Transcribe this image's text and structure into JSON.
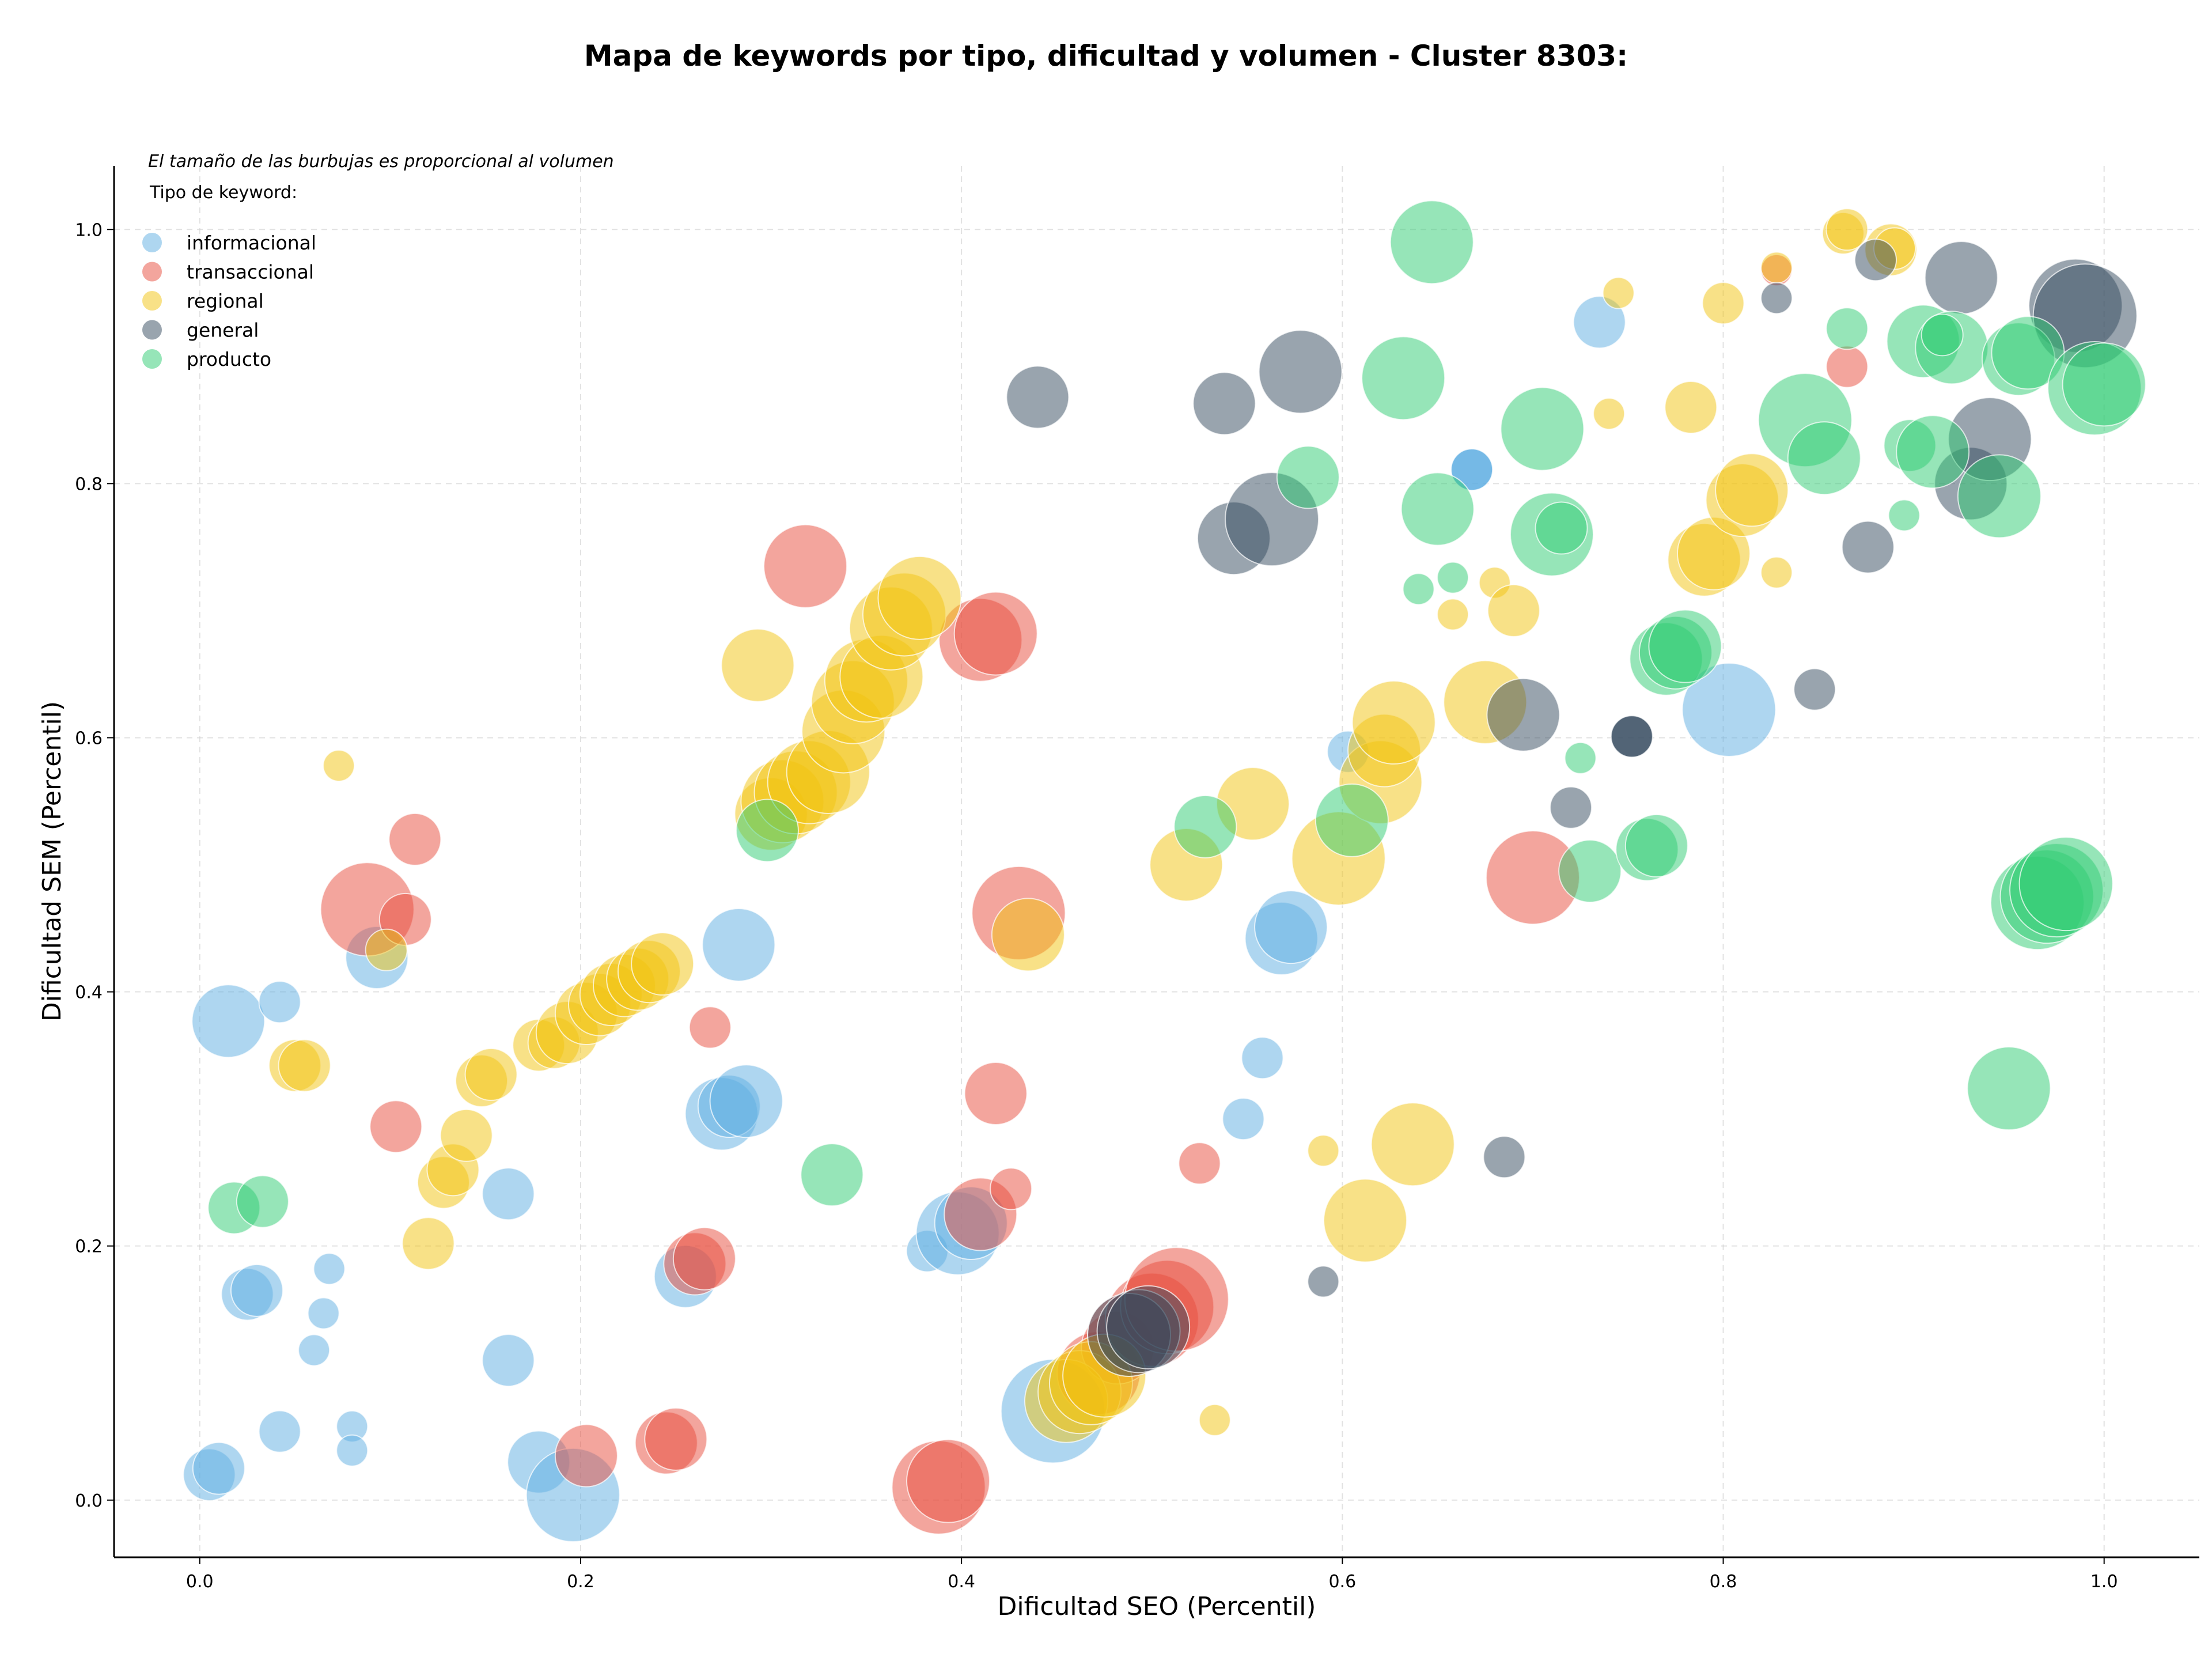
{
  "chart_data": {
    "type": "scatter",
    "title": "Mapa de keywords por tipo, dificultad y volumen - Cluster 8303:",
    "xlabel": "Dificultad SEO (Percentil)",
    "ylabel": "Dificultad SEM (Percentil)",
    "xlim": [
      -0.045,
      1.05
    ],
    "ylim": [
      -0.045,
      1.05
    ],
    "x_ticks": [
      "0.0",
      "0.2",
      "0.4",
      "0.6",
      "0.8",
      "1.0"
    ],
    "y_ticks": [
      "0.0",
      "0.2",
      "0.4",
      "0.6",
      "0.8",
      "1.0"
    ],
    "grid": true,
    "note": "El tamaño de las burbujas es proporcional al volumen",
    "legend_title": "Tipo de keyword:",
    "legend_position": "top-left",
    "series": [
      {
        "name": "informacional",
        "color": "#5DADE2",
        "points": [
          {
            "x": 0.005,
            "y": 0.02,
            "s": 3
          },
          {
            "x": 0.01,
            "y": 0.025,
            "s": 3
          },
          {
            "x": 0.015,
            "y": 0.377,
            "s": 5
          },
          {
            "x": 0.042,
            "y": 0.392,
            "s": 2
          },
          {
            "x": 0.025,
            "y": 0.162,
            "s": 3
          },
          {
            "x": 0.03,
            "y": 0.165,
            "s": 3
          },
          {
            "x": 0.042,
            "y": 0.054,
            "s": 2
          },
          {
            "x": 0.06,
            "y": 0.118,
            "s": 1
          },
          {
            "x": 0.065,
            "y": 0.147,
            "s": 1
          },
          {
            "x": 0.068,
            "y": 0.182,
            "s": 1
          },
          {
            "x": 0.08,
            "y": 0.058,
            "s": 1
          },
          {
            "x": 0.08,
            "y": 0.039,
            "s": 1
          },
          {
            "x": 0.093,
            "y": 0.427,
            "s": 4
          },
          {
            "x": 0.162,
            "y": 0.241,
            "s": 3
          },
          {
            "x": 0.162,
            "y": 0.11,
            "s": 3
          },
          {
            "x": 0.178,
            "y": 0.03,
            "s": 4
          },
          {
            "x": 0.196,
            "y": 0.004,
            "s": 7
          },
          {
            "x": 0.255,
            "y": 0.176,
            "s": 4
          },
          {
            "x": 0.274,
            "y": 0.304,
            "s": 5
          },
          {
            "x": 0.278,
            "y": 0.31,
            "s": 4
          },
          {
            "x": 0.287,
            "y": 0.314,
            "s": 5
          },
          {
            "x": 0.283,
            "y": 0.437,
            "s": 5
          },
          {
            "x": 0.382,
            "y": 0.196,
            "s": 2
          },
          {
            "x": 0.398,
            "y": 0.21,
            "s": 6
          },
          {
            "x": 0.405,
            "y": 0.218,
            "s": 5
          },
          {
            "x": 0.448,
            "y": 0.07,
            "s": 8
          },
          {
            "x": 0.548,
            "y": 0.3,
            "s": 2
          },
          {
            "x": 0.558,
            "y": 0.348,
            "s": 2
          },
          {
            "x": 0.568,
            "y": 0.442,
            "s": 5
          },
          {
            "x": 0.573,
            "y": 0.451,
            "s": 5
          },
          {
            "x": 0.603,
            "y": 0.589,
            "s": 2
          },
          {
            "x": 0.668,
            "y": 0.811,
            "s": 2,
            "o": 0.85
          },
          {
            "x": 0.735,
            "y": 0.927,
            "s": 3
          },
          {
            "x": 0.803,
            "y": 0.622,
            "s": 7
          }
        ]
      },
      {
        "name": "transaccional",
        "color": "#E74C3C",
        "points": [
          {
            "x": 0.088,
            "y": 0.465,
            "s": 7
          },
          {
            "x": 0.108,
            "y": 0.457,
            "s": 3
          },
          {
            "x": 0.113,
            "y": 0.52,
            "s": 3
          },
          {
            "x": 0.103,
            "y": 0.294,
            "s": 3
          },
          {
            "x": 0.203,
            "y": 0.035,
            "s": 4
          },
          {
            "x": 0.245,
            "y": 0.045,
            "s": 4
          },
          {
            "x": 0.25,
            "y": 0.048,
            "s": 4
          },
          {
            "x": 0.26,
            "y": 0.186,
            "s": 4
          },
          {
            "x": 0.265,
            "y": 0.19,
            "s": 4
          },
          {
            "x": 0.268,
            "y": 0.372,
            "s": 2
          },
          {
            "x": 0.318,
            "y": 0.735,
            "s": 6
          },
          {
            "x": 0.388,
            "y": 0.01,
            "s": 7
          },
          {
            "x": 0.393,
            "y": 0.015,
            "s": 6
          },
          {
            "x": 0.41,
            "y": 0.225,
            "s": 5
          },
          {
            "x": 0.41,
            "y": 0.677,
            "s": 6
          },
          {
            "x": 0.418,
            "y": 0.682,
            "s": 6
          },
          {
            "x": 0.418,
            "y": 0.32,
            "s": 4
          },
          {
            "x": 0.426,
            "y": 0.245,
            "s": 2
          },
          {
            "x": 0.43,
            "y": 0.462,
            "s": 7
          },
          {
            "x": 0.472,
            "y": 0.1,
            "s": 6
          },
          {
            "x": 0.482,
            "y": 0.12,
            "s": 5
          },
          {
            "x": 0.488,
            "y": 0.13,
            "s": 6
          },
          {
            "x": 0.5,
            "y": 0.142,
            "s": 7
          },
          {
            "x": 0.508,
            "y": 0.152,
            "s": 7
          },
          {
            "x": 0.513,
            "y": 0.158,
            "s": 8
          },
          {
            "x": 0.525,
            "y": 0.265,
            "s": 2
          },
          {
            "x": 0.7,
            "y": 0.49,
            "s": 7
          },
          {
            "x": 0.865,
            "y": 0.892,
            "s": 2
          },
          {
            "x": 0.828,
            "y": 0.968,
            "s": 1
          }
        ]
      },
      {
        "name": "regional",
        "color": "#F1C40F",
        "points": [
          {
            "x": 0.073,
            "y": 0.578,
            "s": 1
          },
          {
            "x": 0.05,
            "y": 0.342,
            "s": 3
          },
          {
            "x": 0.055,
            "y": 0.342,
            "s": 3
          },
          {
            "x": 0.098,
            "y": 0.433,
            "s": 2
          },
          {
            "x": 0.12,
            "y": 0.202,
            "s": 3
          },
          {
            "x": 0.128,
            "y": 0.25,
            "s": 3
          },
          {
            "x": 0.133,
            "y": 0.26,
            "s": 3
          },
          {
            "x": 0.14,
            "y": 0.287,
            "s": 3
          },
          {
            "x": 0.148,
            "y": 0.33,
            "s": 3
          },
          {
            "x": 0.153,
            "y": 0.335,
            "s": 3
          },
          {
            "x": 0.178,
            "y": 0.358,
            "s": 3
          },
          {
            "x": 0.186,
            "y": 0.36,
            "s": 3
          },
          {
            "x": 0.193,
            "y": 0.368,
            "s": 4
          },
          {
            "x": 0.203,
            "y": 0.383,
            "s": 4
          },
          {
            "x": 0.21,
            "y": 0.39,
            "s": 4
          },
          {
            "x": 0.216,
            "y": 0.398,
            "s": 4
          },
          {
            "x": 0.223,
            "y": 0.405,
            "s": 4
          },
          {
            "x": 0.23,
            "y": 0.41,
            "s": 4
          },
          {
            "x": 0.236,
            "y": 0.416,
            "s": 4
          },
          {
            "x": 0.243,
            "y": 0.422,
            "s": 4
          },
          {
            "x": 0.293,
            "y": 0.657,
            "s": 5
          },
          {
            "x": 0.3,
            "y": 0.54,
            "s": 5
          },
          {
            "x": 0.306,
            "y": 0.55,
            "s": 6
          },
          {
            "x": 0.313,
            "y": 0.557,
            "s": 6
          },
          {
            "x": 0.32,
            "y": 0.565,
            "s": 6
          },
          {
            "x": 0.33,
            "y": 0.573,
            "s": 6
          },
          {
            "x": 0.338,
            "y": 0.605,
            "s": 6
          },
          {
            "x": 0.343,
            "y": 0.628,
            "s": 6
          },
          {
            "x": 0.35,
            "y": 0.645,
            "s": 6
          },
          {
            "x": 0.358,
            "y": 0.648,
            "s": 6
          },
          {
            "x": 0.363,
            "y": 0.686,
            "s": 6
          },
          {
            "x": 0.37,
            "y": 0.697,
            "s": 6
          },
          {
            "x": 0.378,
            "y": 0.71,
            "s": 6
          },
          {
            "x": 0.435,
            "y": 0.445,
            "s": 5
          },
          {
            "x": 0.455,
            "y": 0.078,
            "s": 6
          },
          {
            "x": 0.462,
            "y": 0.085,
            "s": 6
          },
          {
            "x": 0.468,
            "y": 0.092,
            "s": 6
          },
          {
            "x": 0.475,
            "y": 0.098,
            "s": 6
          },
          {
            "x": 0.518,
            "y": 0.5,
            "s": 5
          },
          {
            "x": 0.533,
            "y": 0.063,
            "s": 1
          },
          {
            "x": 0.553,
            "y": 0.548,
            "s": 5
          },
          {
            "x": 0.59,
            "y": 0.275,
            "s": 1
          },
          {
            "x": 0.598,
            "y": 0.505,
            "s": 7
          },
          {
            "x": 0.612,
            "y": 0.22,
            "s": 6
          },
          {
            "x": 0.62,
            "y": 0.565,
            "s": 6
          },
          {
            "x": 0.622,
            "y": 0.59,
            "s": 5
          },
          {
            "x": 0.627,
            "y": 0.612,
            "s": 6
          },
          {
            "x": 0.637,
            "y": 0.28,
            "s": 6
          },
          {
            "x": 0.658,
            "y": 0.697,
            "s": 1
          },
          {
            "x": 0.675,
            "y": 0.628,
            "s": 6
          },
          {
            "x": 0.68,
            "y": 0.722,
            "s": 1
          },
          {
            "x": 0.69,
            "y": 0.7,
            "s": 3
          },
          {
            "x": 0.74,
            "y": 0.855,
            "s": 1
          },
          {
            "x": 0.745,
            "y": 0.95,
            "s": 1
          },
          {
            "x": 0.783,
            "y": 0.86,
            "s": 3
          },
          {
            "x": 0.79,
            "y": 0.74,
            "s": 5
          },
          {
            "x": 0.795,
            "y": 0.745,
            "s": 5
          },
          {
            "x": 0.8,
            "y": 0.942,
            "s": 2
          },
          {
            "x": 0.81,
            "y": 0.787,
            "s": 5
          },
          {
            "x": 0.815,
            "y": 0.795,
            "s": 5
          },
          {
            "x": 0.828,
            "y": 0.73,
            "s": 1
          },
          {
            "x": 0.828,
            "y": 0.97,
            "s": 1
          },
          {
            "x": 0.863,
            "y": 0.997,
            "s": 2
          },
          {
            "x": 0.865,
            "y": 1.0,
            "s": 2
          },
          {
            "x": 0.888,
            "y": 0.984,
            "s": 3
          },
          {
            "x": 0.89,
            "y": 0.985,
            "s": 2
          }
        ]
      },
      {
        "name": "general",
        "color": "#34495E",
        "points": [
          {
            "x": 0.44,
            "y": 0.868,
            "s": 4
          },
          {
            "x": 0.488,
            "y": 0.13,
            "s": 6
          },
          {
            "x": 0.493,
            "y": 0.133,
            "s": 6
          },
          {
            "x": 0.498,
            "y": 0.136,
            "s": 6
          },
          {
            "x": 0.538,
            "y": 0.863,
            "s": 4
          },
          {
            "x": 0.543,
            "y": 0.757,
            "s": 5
          },
          {
            "x": 0.563,
            "y": 0.772,
            "s": 7
          },
          {
            "x": 0.578,
            "y": 0.888,
            "s": 6
          },
          {
            "x": 0.59,
            "y": 0.172,
            "s": 1
          },
          {
            "x": 0.685,
            "y": 0.27,
            "s": 2
          },
          {
            "x": 0.695,
            "y": 0.618,
            "s": 5
          },
          {
            "x": 0.72,
            "y": 0.545,
            "s": 2
          },
          {
            "x": 0.752,
            "y": 0.601,
            "s": 2,
            "o": 0.85
          },
          {
            "x": 0.828,
            "y": 0.946,
            "s": 1
          },
          {
            "x": 0.848,
            "y": 0.638,
            "s": 2
          },
          {
            "x": 0.876,
            "y": 0.75,
            "s": 3
          },
          {
            "x": 0.88,
            "y": 0.976,
            "s": 2
          },
          {
            "x": 0.925,
            "y": 0.962,
            "s": 5
          },
          {
            "x": 0.93,
            "y": 0.8,
            "s": 5
          },
          {
            "x": 0.94,
            "y": 0.835,
            "s": 6
          },
          {
            "x": 0.985,
            "y": 0.94,
            "s": 7
          },
          {
            "x": 0.99,
            "y": 0.932,
            "s": 8
          }
        ]
      },
      {
        "name": "producto",
        "color": "#2ECC71",
        "points": [
          {
            "x": 0.018,
            "y": 0.23,
            "s": 3
          },
          {
            "x": 0.033,
            "y": 0.235,
            "s": 3
          },
          {
            "x": 0.298,
            "y": 0.527,
            "s": 4
          },
          {
            "x": 0.332,
            "y": 0.256,
            "s": 4
          },
          {
            "x": 0.528,
            "y": 0.53,
            "s": 4
          },
          {
            "x": 0.582,
            "y": 0.805,
            "s": 4
          },
          {
            "x": 0.605,
            "y": 0.535,
            "s": 5
          },
          {
            "x": 0.632,
            "y": 0.883,
            "s": 6
          },
          {
            "x": 0.64,
            "y": 0.717,
            "s": 1
          },
          {
            "x": 0.647,
            "y": 0.99,
            "s": 6
          },
          {
            "x": 0.65,
            "y": 0.78,
            "s": 5
          },
          {
            "x": 0.658,
            "y": 0.726,
            "s": 1
          },
          {
            "x": 0.705,
            "y": 0.843,
            "s": 6
          },
          {
            "x": 0.71,
            "y": 0.76,
            "s": 6
          },
          {
            "x": 0.715,
            "y": 0.765,
            "s": 3
          },
          {
            "x": 0.725,
            "y": 0.584,
            "s": 1
          },
          {
            "x": 0.73,
            "y": 0.495,
            "s": 4
          },
          {
            "x": 0.76,
            "y": 0.512,
            "s": 4
          },
          {
            "x": 0.765,
            "y": 0.515,
            "s": 4
          },
          {
            "x": 0.77,
            "y": 0.662,
            "s": 5
          },
          {
            "x": 0.775,
            "y": 0.667,
            "s": 5
          },
          {
            "x": 0.78,
            "y": 0.672,
            "s": 5
          },
          {
            "x": 0.843,
            "y": 0.85,
            "s": 7
          },
          {
            "x": 0.853,
            "y": 0.82,
            "s": 5
          },
          {
            "x": 0.865,
            "y": 0.922,
            "s": 2
          },
          {
            "x": 0.895,
            "y": 0.775,
            "s": 1
          },
          {
            "x": 0.898,
            "y": 0.83,
            "s": 3
          },
          {
            "x": 0.905,
            "y": 0.912,
            "s": 5
          },
          {
            "x": 0.91,
            "y": 0.825,
            "s": 5
          },
          {
            "x": 0.92,
            "y": 0.907,
            "s": 5
          },
          {
            "x": 0.915,
            "y": 0.917,
            "s": 2
          },
          {
            "x": 0.945,
            "y": 0.79,
            "s": 6
          },
          {
            "x": 0.95,
            "y": 0.324,
            "s": 6
          },
          {
            "x": 0.955,
            "y": 0.898,
            "s": 5
          },
          {
            "x": 0.96,
            "y": 0.903,
            "s": 5
          },
          {
            "x": 0.965,
            "y": 0.47,
            "s": 7
          },
          {
            "x": 0.97,
            "y": 0.475,
            "s": 7
          },
          {
            "x": 0.975,
            "y": 0.48,
            "s": 7
          },
          {
            "x": 0.98,
            "y": 0.485,
            "s": 7
          },
          {
            "x": 0.995,
            "y": 0.875,
            "s": 7
          },
          {
            "x": 1.0,
            "y": 0.878,
            "s": 6
          }
        ]
      }
    ]
  }
}
